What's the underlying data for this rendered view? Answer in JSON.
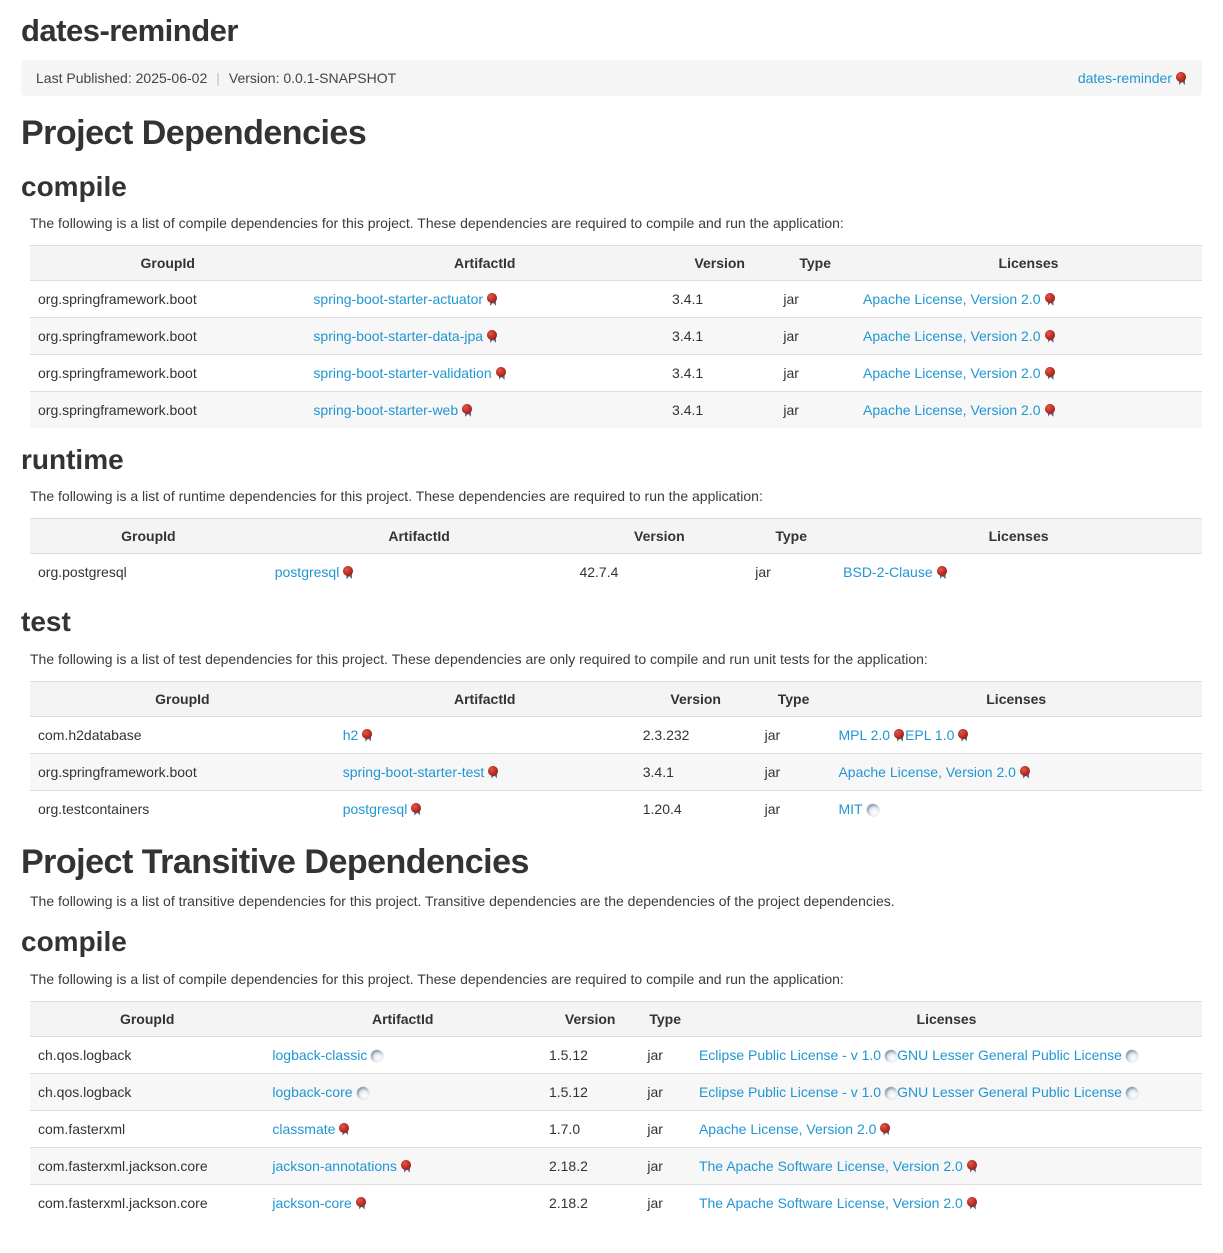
{
  "header": {
    "project_title": "dates-reminder",
    "banner": {
      "last_published": "Last Published: 2025-06-02",
      "separator": "|",
      "version": "Version: 0.0.1-SNAPSHOT",
      "project_link": {
        "label": "dates-reminder",
        "icon": "seal-icon"
      }
    }
  },
  "colors": {
    "link_blue": "#2196d3",
    "seal_red": "#b5281e",
    "globe_gray": "#aebfcf",
    "banner_bg": "#f5f5f5",
    "table_header_bg": "#f4f4f4",
    "table_stripe": "#f7f7f7"
  },
  "table_headers": [
    "GroupId",
    "ArtifactId",
    "Version",
    "Type",
    "Licenses"
  ],
  "deps": {
    "title": "Project Dependencies",
    "compile": {
      "title": "compile",
      "intro": "The following is a list of compile dependencies for this project. These dependencies are required to compile and run the application:",
      "rows": [
        {
          "group": "org.springframework.boot",
          "artifact": "spring-boot-starter-actuator",
          "artifact_icon": "seal-icon",
          "version": "3.4.1",
          "type": "jar",
          "licenses": [
            {
              "label": "Apache License, Version 2.0",
              "icon": "seal-icon"
            }
          ]
        },
        {
          "group": "org.springframework.boot",
          "artifact": "spring-boot-starter-data-jpa",
          "artifact_icon": "seal-icon",
          "version": "3.4.1",
          "type": "jar",
          "licenses": [
            {
              "label": "Apache License, Version 2.0",
              "icon": "seal-icon"
            }
          ]
        },
        {
          "group": "org.springframework.boot",
          "artifact": "spring-boot-starter-validation",
          "artifact_icon": "seal-icon",
          "version": "3.4.1",
          "type": "jar",
          "licenses": [
            {
              "label": "Apache License, Version 2.0",
              "icon": "seal-icon"
            }
          ]
        },
        {
          "group": "org.springframework.boot",
          "artifact": "spring-boot-starter-web",
          "artifact_icon": "seal-icon",
          "version": "3.4.1",
          "type": "jar",
          "licenses": [
            {
              "label": "Apache License, Version 2.0",
              "icon": "seal-icon"
            }
          ]
        }
      ]
    },
    "runtime": {
      "title": "runtime",
      "intro": "The following is a list of runtime dependencies for this project. These dependencies are required to run the application:",
      "rows": [
        {
          "group": "org.postgresql",
          "artifact": "postgresql",
          "artifact_icon": "seal-icon",
          "version": "42.7.4",
          "type": "jar",
          "licenses": [
            {
              "label": "BSD-2-Clause",
              "icon": "seal-icon"
            }
          ]
        }
      ]
    },
    "test": {
      "title": "test",
      "intro": "The following is a list of test dependencies for this project. These dependencies are only required to compile and run unit tests for the application:",
      "rows": [
        {
          "group": "com.h2database",
          "artifact": "h2",
          "artifact_icon": "seal-icon",
          "version": "2.3.232",
          "type": "jar",
          "licenses": [
            {
              "label": "MPL 2.0",
              "icon": "seal-icon"
            },
            {
              "label": "EPL 1.0",
              "icon": "seal-icon"
            }
          ]
        },
        {
          "group": "org.springframework.boot",
          "artifact": "spring-boot-starter-test",
          "artifact_icon": "seal-icon",
          "version": "3.4.1",
          "type": "jar",
          "licenses": [
            {
              "label": "Apache License, Version 2.0",
              "icon": "seal-icon"
            }
          ]
        },
        {
          "group": "org.testcontainers",
          "artifact": "postgresql",
          "artifact_icon": "seal-icon",
          "version": "1.20.4",
          "type": "jar",
          "licenses": [
            {
              "label": "MIT",
              "icon": "globe-icon"
            }
          ]
        }
      ]
    }
  },
  "transitive": {
    "title": "Project Transitive Dependencies",
    "intro": "The following is a list of transitive dependencies for this project. Transitive dependencies are the dependencies of the project dependencies.",
    "compile": {
      "title": "compile",
      "intro": "The following is a list of compile dependencies for this project. These dependencies are required to compile and run the application:",
      "rows": [
        {
          "group": "ch.qos.logback",
          "artifact": "logback-classic",
          "artifact_icon": "globe-icon",
          "version": "1.5.12",
          "type": "jar",
          "licenses": [
            {
              "label": "Eclipse Public License - v 1.0",
              "icon": "globe-icon"
            },
            {
              "label": "GNU Lesser General Public License",
              "icon": "globe-icon"
            }
          ]
        },
        {
          "group": "ch.qos.logback",
          "artifact": "logback-core",
          "artifact_icon": "globe-icon",
          "version": "1.5.12",
          "type": "jar",
          "licenses": [
            {
              "label": "Eclipse Public License - v 1.0",
              "icon": "globe-icon"
            },
            {
              "label": "GNU Lesser General Public License",
              "icon": "globe-icon"
            }
          ]
        },
        {
          "group": "com.fasterxml",
          "artifact": "classmate",
          "artifact_icon": "seal-icon",
          "version": "1.7.0",
          "type": "jar",
          "licenses": [
            {
              "label": "Apache License, Version 2.0",
              "icon": "seal-icon"
            }
          ]
        },
        {
          "group": "com.fasterxml.jackson.core",
          "artifact": "jackson-annotations",
          "artifact_icon": "seal-icon",
          "version": "2.18.2",
          "type": "jar",
          "licenses": [
            {
              "label": "The Apache Software License, Version 2.0",
              "icon": "seal-icon"
            }
          ]
        },
        {
          "group": "com.fasterxml.jackson.core",
          "artifact": "jackson-core",
          "artifact_icon": "seal-icon",
          "version": "2.18.2",
          "type": "jar",
          "licenses": [
            {
              "label": "The Apache Software License, Version 2.0",
              "icon": "seal-icon"
            }
          ]
        }
      ]
    }
  }
}
